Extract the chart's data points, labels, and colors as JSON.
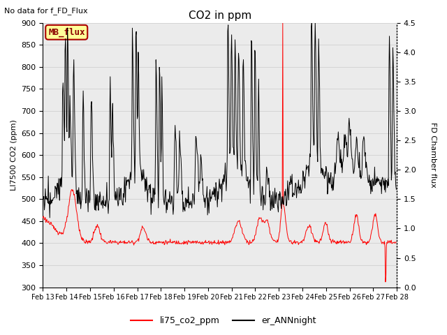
{
  "title": "CO2 in ppm",
  "top_left_text": "No data for f_FD_Flux",
  "ylabel_left": "LI7500 CO2 (ppm)",
  "ylabel_right": "FD Chamber flux",
  "ylim_left": [
    300,
    900
  ],
  "ylim_right": [
    0.0,
    4.5
  ],
  "xtick_labels": [
    "Feb 13",
    "Feb 14",
    "Feb 15",
    "Feb 16",
    "Feb 17",
    "Feb 18",
    "Feb 19",
    "Feb 20",
    "Feb 21",
    "Feb 22",
    "Feb 23",
    "Feb 24",
    "Feb 25",
    "Feb 26",
    "Feb 27",
    "Feb 28"
  ],
  "legend_labels": [
    "li75_co2_ppm",
    "er_ANNnight"
  ],
  "line_red_color": "#ff0000",
  "line_black_color": "#000000",
  "grid_color": "#d0d0d0",
  "inner_bg_color": "#ebebeb",
  "mb_flux_label": "MB_flux",
  "mb_flux_bg": "#ffff99",
  "mb_flux_border": "#cc0000",
  "figsize": [
    6.4,
    4.8
  ],
  "dpi": 100
}
